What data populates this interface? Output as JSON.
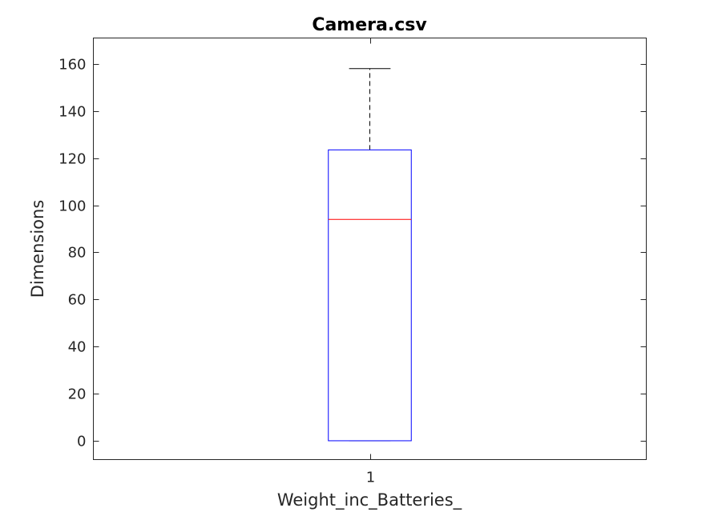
{
  "chart_data": {
    "type": "box",
    "title": "Camera.csv",
    "xlabel": "Weight_inc_Batteries_",
    "ylabel": "Dimensions",
    "categories": [
      "1"
    ],
    "ylim": [
      -8,
      171
    ],
    "yticks": [
      0,
      20,
      40,
      60,
      80,
      100,
      120,
      140,
      160
    ],
    "grid": false,
    "boxes": [
      {
        "category": "1",
        "whisker_low": 0,
        "q1": 0,
        "median": 94,
        "q3": 123.5,
        "whisker_high": 158
      }
    ],
    "colors": {
      "box": "#0000ff",
      "median": "#ff0000",
      "whisker": "#000000",
      "axes": "#262626"
    }
  }
}
